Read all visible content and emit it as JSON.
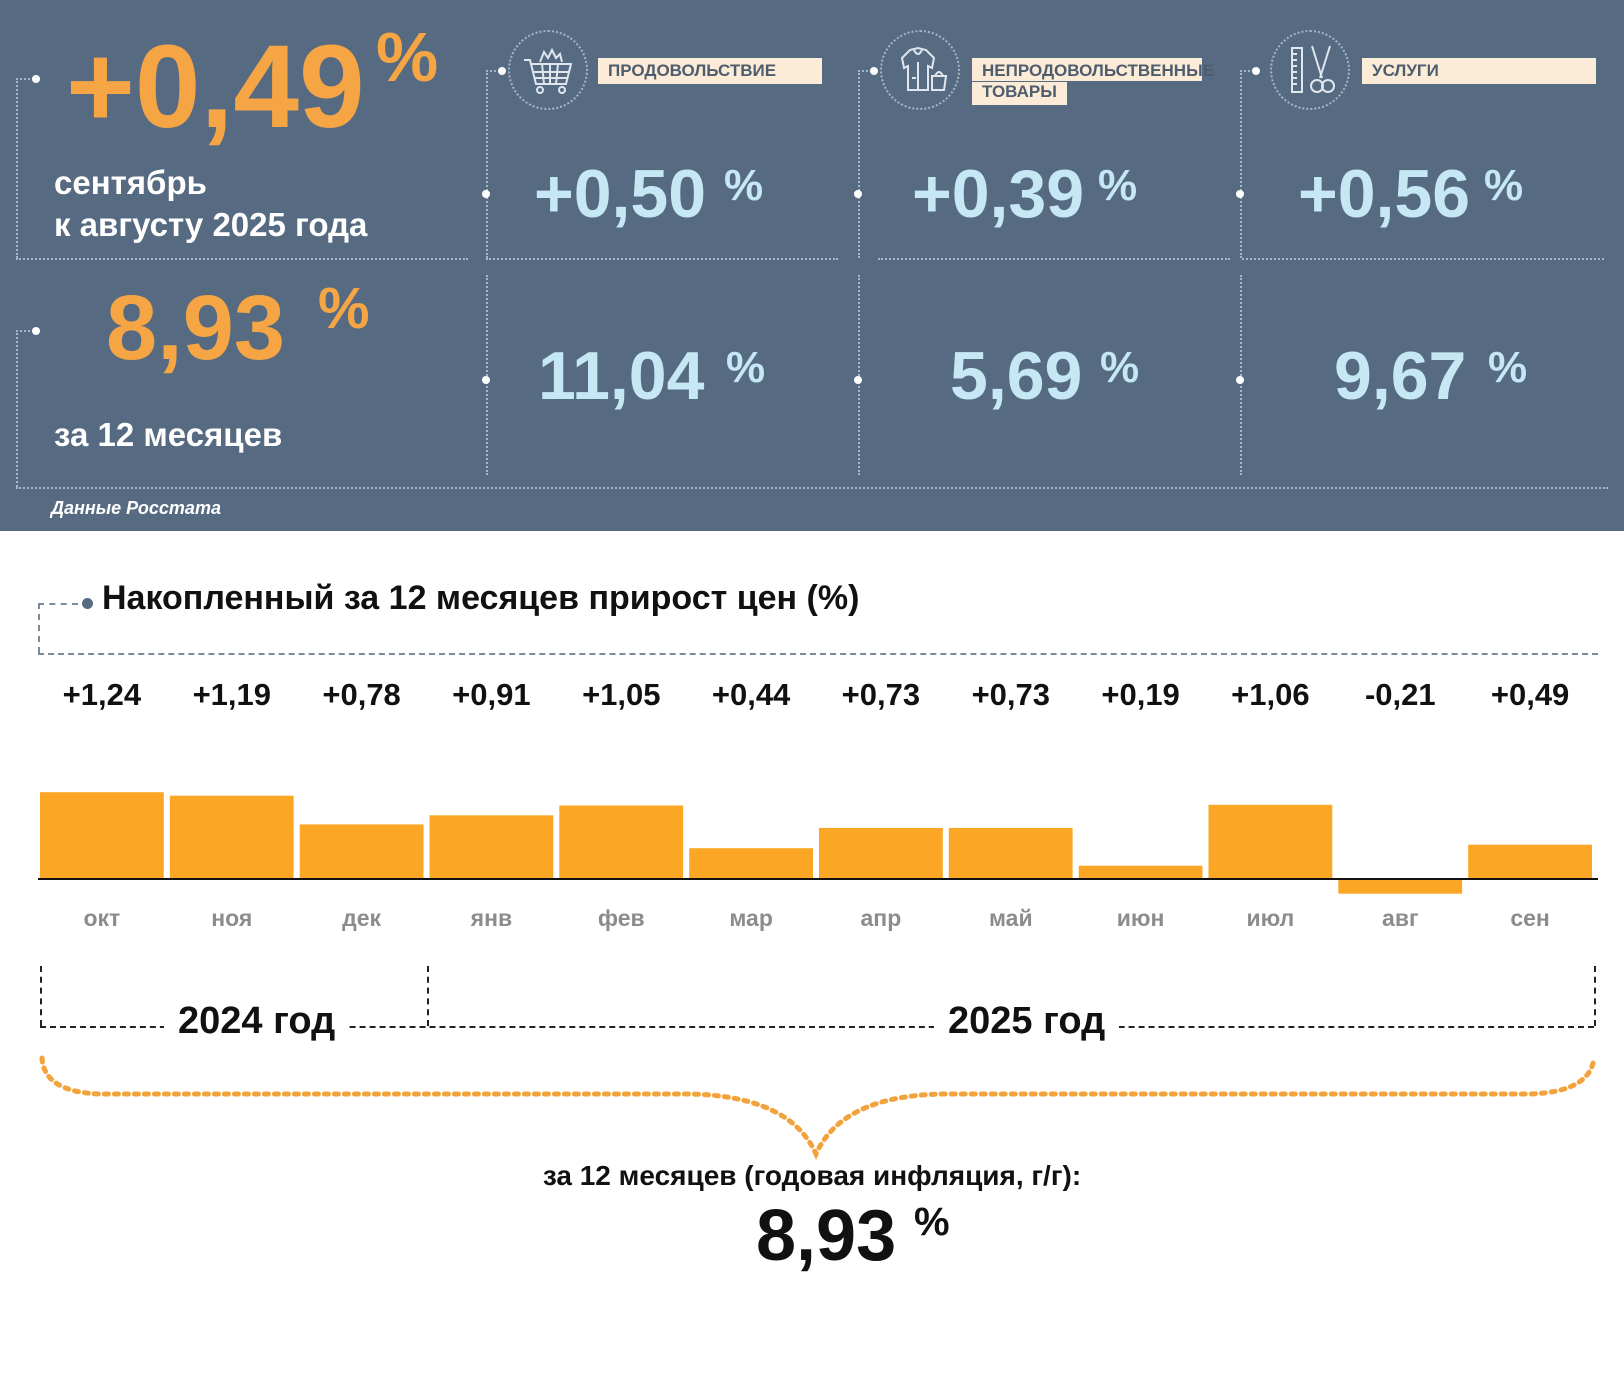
{
  "header": {
    "monthly": {
      "value": "+0,49",
      "pct": "%",
      "caption_line1": "сентябрь",
      "caption_line2": "к августу 2025 года"
    },
    "annual": {
      "value": "8,93",
      "pct": "%",
      "caption": "за 12 месяцев"
    },
    "categories": [
      {
        "label_line1": "ПРОДОВОЛЬСТВИЕ",
        "label_line2": "",
        "icon": "shopping-cart-icon",
        "monthly": "+0,50",
        "annual": "11,04",
        "pct": "%"
      },
      {
        "label_line1": "НЕПРОДОВОЛЬСТВЕННЫЕ",
        "label_line2": "ТОВАРЫ",
        "icon": "clothing-icon",
        "monthly": "+0,39",
        "annual": "5,69",
        "pct": "%"
      },
      {
        "label_line1": "УСЛУГИ",
        "label_line2": "",
        "icon": "scissors-comb-icon",
        "monthly": "+0,56",
        "annual": "9,67",
        "pct": "%"
      }
    ],
    "source": "Данные Росстата"
  },
  "chart_data": {
    "type": "bar",
    "title": "Накопленный за 12 месяцев прирост цен (%)",
    "categories": [
      "окт",
      "ноя",
      "дек",
      "янв",
      "фев",
      "мар",
      "апр",
      "май",
      "июн",
      "июл",
      "авг",
      "сен"
    ],
    "values": [
      1.24,
      1.19,
      0.78,
      0.91,
      1.05,
      0.44,
      0.73,
      0.73,
      0.19,
      1.06,
      -0.21,
      0.49
    ],
    "value_labels": [
      "+1,24",
      "+1,19",
      "+0,78",
      "+0,91",
      "+1,05",
      "+0,44",
      "+0,73",
      "+0,73",
      "+0,19",
      "+1,06",
      "-0,21",
      "+0,49"
    ],
    "bar_color": "#fba624",
    "grid": false,
    "year_groups": [
      {
        "label": "2024 год",
        "months": [
          "окт",
          "ноя",
          "дек"
        ]
      },
      {
        "label": "2025 год",
        "months": [
          "янв",
          "фев",
          "мар",
          "апр",
          "май",
          "июн",
          "июл",
          "авг",
          "сен"
        ]
      }
    ],
    "summary_label": "за 12 месяцев (годовая инфляция, г/г):",
    "summary_value": "8,93",
    "summary_pct": "%"
  },
  "colors": {
    "panel_bg": "#566b82",
    "orange": "#f6a544",
    "light_blue": "#c6e7f4",
    "label_bg": "#fcebd6"
  }
}
